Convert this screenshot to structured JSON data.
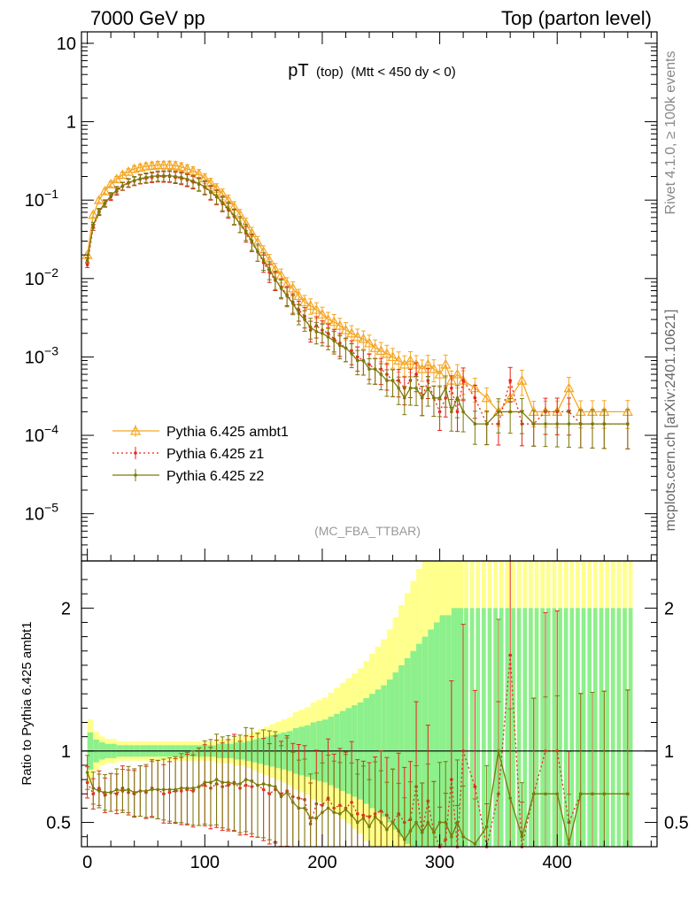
{
  "header": {
    "left_label": "7000 GeV pp",
    "right_label": "Top (parton level)"
  },
  "side_labels": {
    "rivet": "Rivet 4.1.0, ≥ 100k events",
    "mcplots": "mcplots.cern.ch [arXiv:2401.10621]"
  },
  "chart_data": {
    "type": "line",
    "title_main": "pT",
    "title_sub": "(top)",
    "title_cut": "(Mtt < 450 dy < 0)",
    "analysis_tag": "(MC_FBA_TTBAR)",
    "xlim": [
      -5,
      485
    ],
    "x_ticks": [
      0,
      100,
      200,
      300,
      400
    ],
    "main": {
      "yscale": "log",
      "ylim": [
        2.5e-06,
        14
      ],
      "y_ticks": [
        {
          "value": 10,
          "base": "10",
          "exp": ""
        },
        {
          "value": 1,
          "base": "1",
          "exp": ""
        },
        {
          "value": 0.1,
          "base": "10",
          "exp": "−1"
        },
        {
          "value": 0.01,
          "base": "10",
          "exp": "−2"
        },
        {
          "value": 0.001,
          "base": "10",
          "exp": "−3"
        },
        {
          "value": 0.0001,
          "base": "10",
          "exp": "−4"
        },
        {
          "value": 1e-05,
          "base": "10",
          "exp": "−5"
        }
      ]
    },
    "ratio": {
      "ylabel": "Ratio to Pythia 6.425 ambt1",
      "ylim": [
        0.33,
        2.33
      ],
      "y_ticks": [
        0.5,
        1,
        2
      ],
      "reference_line": 1
    },
    "legend": {
      "position": "lower-left",
      "entries": [
        "Pythia 6.425 ambt1",
        "Pythia 6.425 z1",
        "Pythia 6.425 z2"
      ]
    },
    "series": [
      {
        "name": "Pythia 6.425 ambt1",
        "color": "#f5a623",
        "style": "solid-triangle",
        "x": [
          0,
          5,
          10,
          15,
          20,
          25,
          30,
          35,
          40,
          45,
          50,
          55,
          60,
          65,
          70,
          75,
          80,
          85,
          90,
          95,
          100,
          105,
          110,
          115,
          120,
          125,
          130,
          135,
          140,
          145,
          150,
          155,
          160,
          165,
          170,
          175,
          180,
          185,
          190,
          195,
          200,
          205,
          210,
          215,
          220,
          225,
          230,
          235,
          240,
          245,
          250,
          255,
          260,
          265,
          270,
          275,
          280,
          285,
          290,
          295,
          300,
          305,
          310,
          315,
          320,
          330,
          340,
          350,
          360,
          370,
          380,
          390,
          400,
          410,
          420,
          430,
          440,
          460
        ],
        "y": [
          0.02,
          0.065,
          0.1,
          0.13,
          0.16,
          0.185,
          0.21,
          0.23,
          0.25,
          0.26,
          0.27,
          0.275,
          0.28,
          0.28,
          0.28,
          0.275,
          0.265,
          0.25,
          0.235,
          0.215,
          0.19,
          0.165,
          0.14,
          0.12,
          0.1,
          0.082,
          0.065,
          0.05,
          0.038,
          0.029,
          0.022,
          0.017,
          0.013,
          0.011,
          0.0085,
          0.0075,
          0.006,
          0.005,
          0.0045,
          0.004,
          0.0035,
          0.003,
          0.0028,
          0.0025,
          0.0022,
          0.002,
          0.0018,
          0.0017,
          0.0015,
          0.0013,
          0.0012,
          0.0011,
          0.001,
          0.0009,
          0.0008,
          0.0009,
          0.0008,
          0.0007,
          0.0008,
          0.0007,
          0.0006,
          0.0008,
          0.0005,
          0.0006,
          0.0005,
          0.0004,
          0.0003,
          0.0002,
          0.0003,
          0.0005,
          0.0002,
          0.0002,
          0.0002,
          0.0004,
          0.0002,
          0.0002,
          0.0002,
          0.0002
        ],
        "rel_err": 0.06
      },
      {
        "name": "Pythia 6.425 z1",
        "color": "#e8231a",
        "style": "dotted-point",
        "x": [
          0,
          5,
          10,
          15,
          20,
          25,
          30,
          35,
          40,
          45,
          50,
          55,
          60,
          65,
          70,
          75,
          80,
          85,
          90,
          95,
          100,
          105,
          110,
          115,
          120,
          125,
          130,
          135,
          140,
          145,
          150,
          155,
          160,
          165,
          170,
          175,
          180,
          185,
          190,
          195,
          200,
          205,
          210,
          215,
          220,
          225,
          230,
          235,
          240,
          245,
          250,
          255,
          260,
          265,
          270,
          275,
          280,
          285,
          290,
          295,
          300,
          305,
          310,
          315,
          320,
          330,
          340,
          350,
          360,
          370,
          380,
          390,
          400,
          410,
          420,
          430,
          440,
          460
        ],
        "y": [
          0.015,
          0.045,
          0.07,
          0.09,
          0.11,
          0.13,
          0.15,
          0.165,
          0.175,
          0.185,
          0.19,
          0.195,
          0.2,
          0.2,
          0.2,
          0.195,
          0.19,
          0.18,
          0.17,
          0.16,
          0.145,
          0.125,
          0.11,
          0.09,
          0.075,
          0.062,
          0.05,
          0.038,
          0.029,
          0.022,
          0.016,
          0.012,
          0.0095,
          0.0078,
          0.0062,
          0.005,
          0.004,
          0.0033,
          0.0022,
          0.0025,
          0.0022,
          0.002,
          0.0017,
          0.0015,
          0.0013,
          0.0012,
          0.001,
          0.0009,
          0.0008,
          0.0007,
          0.0007,
          0.0006,
          0.0005,
          0.0005,
          0.0004,
          0.0005,
          0.0006,
          0.0003,
          0.0005,
          0.0003,
          0.0002,
          0.0003,
          0.0004,
          0.0002,
          0.0005,
          0.0003,
          0.00014,
          0.00014,
          0.0005,
          0.00014,
          0.00014,
          0.0002,
          0.0002,
          0.0002,
          0.00014,
          0.00014,
          0.00014,
          0.00014
        ],
        "rel_err": 0.08
      },
      {
        "name": "Pythia 6.425 z2",
        "color": "#7a7a0a",
        "style": "solid-point",
        "x": [
          0,
          5,
          10,
          15,
          20,
          25,
          30,
          35,
          40,
          45,
          50,
          55,
          60,
          65,
          70,
          75,
          80,
          85,
          90,
          95,
          100,
          105,
          110,
          115,
          120,
          125,
          130,
          135,
          140,
          145,
          150,
          155,
          160,
          165,
          170,
          175,
          180,
          185,
          190,
          195,
          200,
          205,
          210,
          215,
          220,
          225,
          230,
          235,
          240,
          245,
          250,
          255,
          260,
          265,
          270,
          275,
          280,
          285,
          290,
          295,
          300,
          305,
          310,
          315,
          320,
          330,
          340,
          350,
          360,
          370,
          380,
          390,
          400,
          410,
          420,
          430,
          440,
          460
        ],
        "y": [
          0.017,
          0.048,
          0.072,
          0.092,
          0.113,
          0.135,
          0.152,
          0.168,
          0.178,
          0.188,
          0.195,
          0.2,
          0.205,
          0.205,
          0.205,
          0.2,
          0.195,
          0.185,
          0.175,
          0.162,
          0.148,
          0.128,
          0.112,
          0.093,
          0.078,
          0.063,
          0.05,
          0.04,
          0.03,
          0.022,
          0.017,
          0.013,
          0.0098,
          0.0075,
          0.006,
          0.0048,
          0.0036,
          0.003,
          0.0024,
          0.0021,
          0.002,
          0.0018,
          0.0016,
          0.0014,
          0.0013,
          0.0011,
          0.0009,
          0.0009,
          0.0007,
          0.0007,
          0.0006,
          0.0005,
          0.0005,
          0.0004,
          0.0003,
          0.0004,
          0.0004,
          0.0003,
          0.0004,
          0.0003,
          0.0003,
          0.0004,
          0.0002,
          0.0003,
          0.0002,
          0.00014,
          0.00014,
          0.0002,
          0.0002,
          0.0002,
          0.00014,
          0.00014,
          0.00014,
          0.00014,
          0.00014,
          0.00014,
          0.00014,
          0.00014
        ],
        "rel_err": 0.08
      }
    ],
    "ratio_series": [
      {
        "name": "Pythia 6.425 z1",
        "x": [
          0,
          5,
          10,
          15,
          20,
          25,
          30,
          35,
          40,
          45,
          50,
          55,
          60,
          65,
          70,
          75,
          80,
          85,
          90,
          95,
          100,
          105,
          110,
          115,
          120,
          125,
          130,
          135,
          140,
          145,
          150,
          155,
          160,
          165,
          170,
          175,
          180,
          185,
          190,
          195,
          200,
          205,
          210,
          215,
          220,
          225,
          230,
          235,
          240,
          245,
          250,
          255,
          260,
          265,
          270,
          275,
          280,
          285,
          290,
          295,
          300,
          305,
          310,
          315,
          320,
          330,
          340,
          350,
          360,
          370,
          380,
          390,
          400,
          410,
          420,
          430,
          440,
          460
        ],
        "y": [
          0.78,
          0.7,
          0.74,
          0.69,
          0.71,
          0.7,
          0.74,
          0.71,
          0.7,
          0.72,
          0.71,
          0.74,
          0.73,
          0.7,
          0.71,
          0.72,
          0.72,
          0.73,
          0.72,
          0.75,
          0.76,
          0.74,
          0.77,
          0.75,
          0.76,
          0.78,
          0.74,
          0.76,
          0.75,
          0.76,
          0.73,
          0.7,
          0.73,
          0.7,
          0.72,
          0.68,
          0.67,
          0.66,
          0.49,
          0.63,
          0.62,
          0.67,
          0.6,
          0.62,
          0.6,
          0.64,
          0.56,
          0.55,
          0.54,
          0.56,
          0.58,
          0.55,
          0.5,
          0.56,
          0.5,
          0.52,
          0.75,
          0.43,
          0.65,
          0.43,
          0.33,
          0.38,
          0.8,
          0.33,
          1.0,
          0.75,
          0.33,
          0.7,
          1.67,
          0.33,
          0.7,
          1.0,
          1.0,
          0.5,
          0.7,
          0.7,
          0.7,
          0.7
        ],
        "rel_err": 0.14
      },
      {
        "name": "Pythia 6.425 z2",
        "x": [
          0,
          5,
          10,
          15,
          20,
          25,
          30,
          35,
          40,
          45,
          50,
          55,
          60,
          65,
          70,
          75,
          80,
          85,
          90,
          95,
          100,
          105,
          110,
          115,
          120,
          125,
          130,
          135,
          140,
          145,
          150,
          155,
          160,
          165,
          170,
          175,
          180,
          185,
          190,
          195,
          200,
          205,
          210,
          215,
          220,
          225,
          230,
          235,
          240,
          245,
          250,
          255,
          260,
          265,
          270,
          275,
          280,
          285,
          290,
          295,
          300,
          305,
          310,
          315,
          320,
          330,
          340,
          350,
          360,
          370,
          380,
          390,
          400,
          410,
          420,
          430,
          440,
          460
        ],
        "y": [
          0.85,
          0.74,
          0.72,
          0.71,
          0.71,
          0.73,
          0.72,
          0.73,
          0.71,
          0.72,
          0.72,
          0.73,
          0.73,
          0.73,
          0.73,
          0.73,
          0.74,
          0.74,
          0.74,
          0.75,
          0.78,
          0.78,
          0.8,
          0.78,
          0.78,
          0.77,
          0.77,
          0.8,
          0.79,
          0.76,
          0.77,
          0.76,
          0.75,
          0.68,
          0.71,
          0.64,
          0.6,
          0.6,
          0.53,
          0.53,
          0.57,
          0.6,
          0.57,
          0.56,
          0.59,
          0.55,
          0.5,
          0.53,
          0.47,
          0.54,
          0.5,
          0.45,
          0.5,
          0.44,
          0.38,
          0.44,
          0.5,
          0.43,
          0.5,
          0.43,
          0.5,
          0.5,
          0.4,
          0.5,
          0.4,
          0.35,
          0.47,
          1.0,
          0.67,
          0.4,
          0.7,
          0.7,
          0.7,
          0.35,
          0.7,
          0.7,
          0.7,
          0.7
        ],
        "rel_err": 0.14
      }
    ],
    "ratio_band": {
      "x_edges": [
        0,
        5,
        10,
        15,
        20,
        25,
        30,
        35,
        40,
        45,
        50,
        55,
        60,
        65,
        70,
        75,
        80,
        85,
        90,
        95,
        100,
        105,
        110,
        115,
        120,
        125,
        130,
        135,
        140,
        145,
        150,
        155,
        160,
        165,
        170,
        175,
        180,
        185,
        190,
        195,
        200,
        205,
        210,
        215,
        220,
        225,
        230,
        235,
        240,
        245,
        250,
        255,
        260,
        265,
        270,
        275,
        280,
        285,
        290,
        295,
        300,
        305,
        310,
        315,
        320,
        325,
        330,
        335,
        340,
        345,
        350,
        355,
        360,
        365,
        370,
        375,
        380,
        385,
        390,
        395,
        400,
        405,
        410,
        415,
        420,
        425,
        430,
        435,
        440,
        445,
        450,
        455,
        460,
        465
      ],
      "stat_half_width": [
        0.13,
        0.08,
        0.06,
        0.05,
        0.05,
        0.04,
        0.04,
        0.04,
        0.04,
        0.04,
        0.04,
        0.04,
        0.04,
        0.04,
        0.04,
        0.04,
        0.04,
        0.04,
        0.04,
        0.04,
        0.04,
        0.04,
        0.05,
        0.05,
        0.05,
        0.06,
        0.06,
        0.07,
        0.08,
        0.09,
        0.1,
        0.11,
        0.12,
        0.13,
        0.14,
        0.16,
        0.17,
        0.18,
        0.2,
        0.21,
        0.22,
        0.24,
        0.26,
        0.28,
        0.3,
        0.32,
        0.34,
        0.37,
        0.4,
        0.43,
        0.46,
        0.5,
        0.55,
        0.6,
        0.65,
        0.7,
        0.75,
        0.8,
        0.85,
        0.9,
        0.95,
        0.95,
        1.0,
        1.0,
        1.0,
        1.0,
        1.0,
        1.0,
        1.0,
        1.0,
        1.0,
        1.0,
        1.0,
        1.0,
        1.0,
        1.0,
        1.0,
        1.0,
        1.0,
        1.0,
        1.0,
        1.0,
        1.0,
        1.0,
        1.0,
        1.0,
        1.0,
        1.0,
        1.0,
        1.0,
        1.0,
        1.0,
        1.0
      ],
      "gap_bins_from": 320
    }
  }
}
